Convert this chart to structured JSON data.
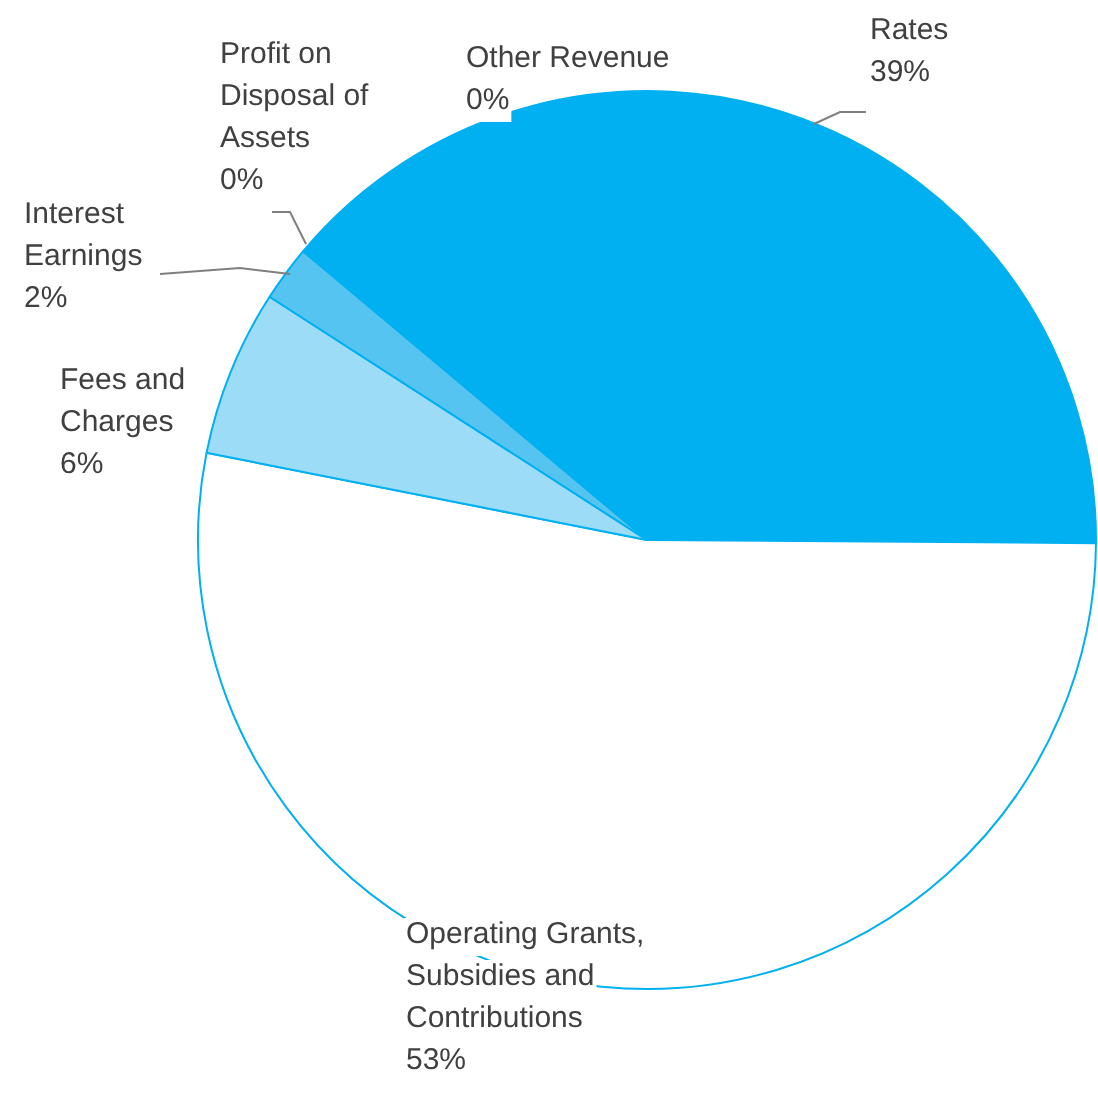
{
  "chart_data": {
    "type": "pie",
    "categories": [
      "Rates",
      "Operating Grants, Subsidies and Contributions",
      "Fees and Charges",
      "Interest Earnings",
      "Profit on Disposal of Assets",
      "Other Revenue"
    ],
    "values": [
      39,
      53,
      6,
      2,
      0,
      0
    ],
    "value_labels": [
      "39%",
      "53%",
      "6%",
      "2%",
      "0%",
      "0%"
    ],
    "colors": [
      "#00b0f0",
      "#ffffff",
      "#9ddcf6",
      "#55c4f0",
      "#00b0f0",
      "#00b0f0"
    ],
    "legend": false
  }
}
